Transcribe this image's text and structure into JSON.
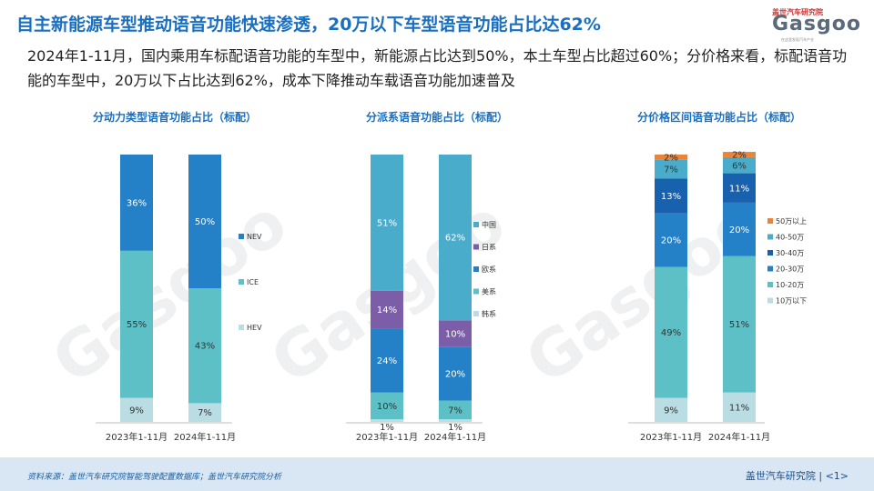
{
  "header": {
    "title": "自主新能源车型推动语音功能快速渗透，20万以下车型语音功能占比达62%",
    "subtitle": "2024年1-11月，国内乘用车标配语音功能的车型中，新能源占比达到50%，本土车型占比超过60%；分价格来看，标配语音功能的车型中，20万以下占比达到62%，成本下降推动车载语音功能加速普及"
  },
  "logo": {
    "cn": "盖世汽车研究院",
    "en": "Gasgoo",
    "sub": "在这里发现汽车产业"
  },
  "footer": {
    "source": "资料来源：盖世汽车研究院智能驾驶配置数据库；盖世汽车研究院分析",
    "brand": "盖世汽车研究院",
    "page": "<1>"
  },
  "colors": {
    "title_blue": "#1a6fc0",
    "nev": "#2481c7",
    "ice": "#5dc0c7",
    "hev": "#b9dde3",
    "china": "#4aaccb",
    "japan": "#7b5ea7",
    "europe": "#2481c7",
    "usa": "#5dc0c7",
    "korea": "#b9dde3",
    "p50plus": "#e8853a",
    "p40_50": "#4aaccb",
    "p30_40": "#1761ae",
    "p20_30": "#2481c7",
    "p10_20": "#5dc0c7",
    "p10under": "#b9dde3"
  },
  "chart_data": [
    {
      "type": "bar",
      "stacked": true,
      "title": "分动力类型语音功能占比（标配）",
      "categories": [
        "2023年1-11月",
        "2024年1-11月"
      ],
      "ylim": [
        0,
        100
      ],
      "series": [
        {
          "name": "HEV",
          "values": [
            9,
            7
          ],
          "labels": [
            "9%",
            "7%"
          ],
          "color_key": "hev"
        },
        {
          "name": "ICE",
          "values": [
            55,
            43
          ],
          "labels": [
            "55%",
            "43%"
          ],
          "color_key": "ice"
        },
        {
          "name": "NEV",
          "values": [
            36,
            50
          ],
          "labels": [
            "36%",
            "50%"
          ],
          "color_key": "nev"
        }
      ]
    },
    {
      "type": "bar",
      "stacked": true,
      "title": "分派系语音功能占比（标配）",
      "categories": [
        "2023年1-11月",
        "2024年1-11月"
      ],
      "ylim": [
        0,
        100
      ],
      "series": [
        {
          "name": "韩系",
          "values": [
            1,
            1
          ],
          "labels": [
            "1%",
            "1%"
          ],
          "color_key": "korea"
        },
        {
          "name": "美系",
          "values": [
            10,
            7
          ],
          "labels": [
            "10%",
            "7%"
          ],
          "color_key": "usa"
        },
        {
          "name": "欧系",
          "values": [
            24,
            20
          ],
          "labels": [
            "24%",
            "20%"
          ],
          "color_key": "europe"
        },
        {
          "name": "日系",
          "values": [
            14,
            10
          ],
          "labels": [
            "14%",
            "10%"
          ],
          "color_key": "japan"
        },
        {
          "name": "中国",
          "values": [
            51,
            62
          ],
          "labels": [
            "51%",
            "62%"
          ],
          "color_key": "china"
        }
      ]
    },
    {
      "type": "bar",
      "stacked": true,
      "title": "分价格区间语音功能占比（标配）",
      "categories": [
        "2023年1-11月",
        "2024年1-11月"
      ],
      "ylim": [
        0,
        100
      ],
      "series": [
        {
          "name": "10万以下",
          "values": [
            9,
            11
          ],
          "labels": [
            "9%",
            "11%"
          ],
          "color_key": "p10under"
        },
        {
          "name": "10-20万",
          "values": [
            49,
            51
          ],
          "labels": [
            "49%",
            "51%"
          ],
          "color_key": "p10_20"
        },
        {
          "name": "20-30万",
          "values": [
            20,
            20
          ],
          "labels": [
            "20%",
            "20%"
          ],
          "color_key": "p20_30"
        },
        {
          "name": "30-40万",
          "values": [
            13,
            11
          ],
          "labels": [
            "13%",
            "11%"
          ],
          "color_key": "p30_40"
        },
        {
          "name": "40-50万",
          "values": [
            7,
            6
          ],
          "labels": [
            "7%",
            "6%"
          ],
          "color_key": "p40_50"
        },
        {
          "name": "50万以上",
          "values": [
            2,
            2
          ],
          "labels": [
            "2%",
            "2%"
          ],
          "color_key": "p50plus"
        }
      ]
    }
  ]
}
